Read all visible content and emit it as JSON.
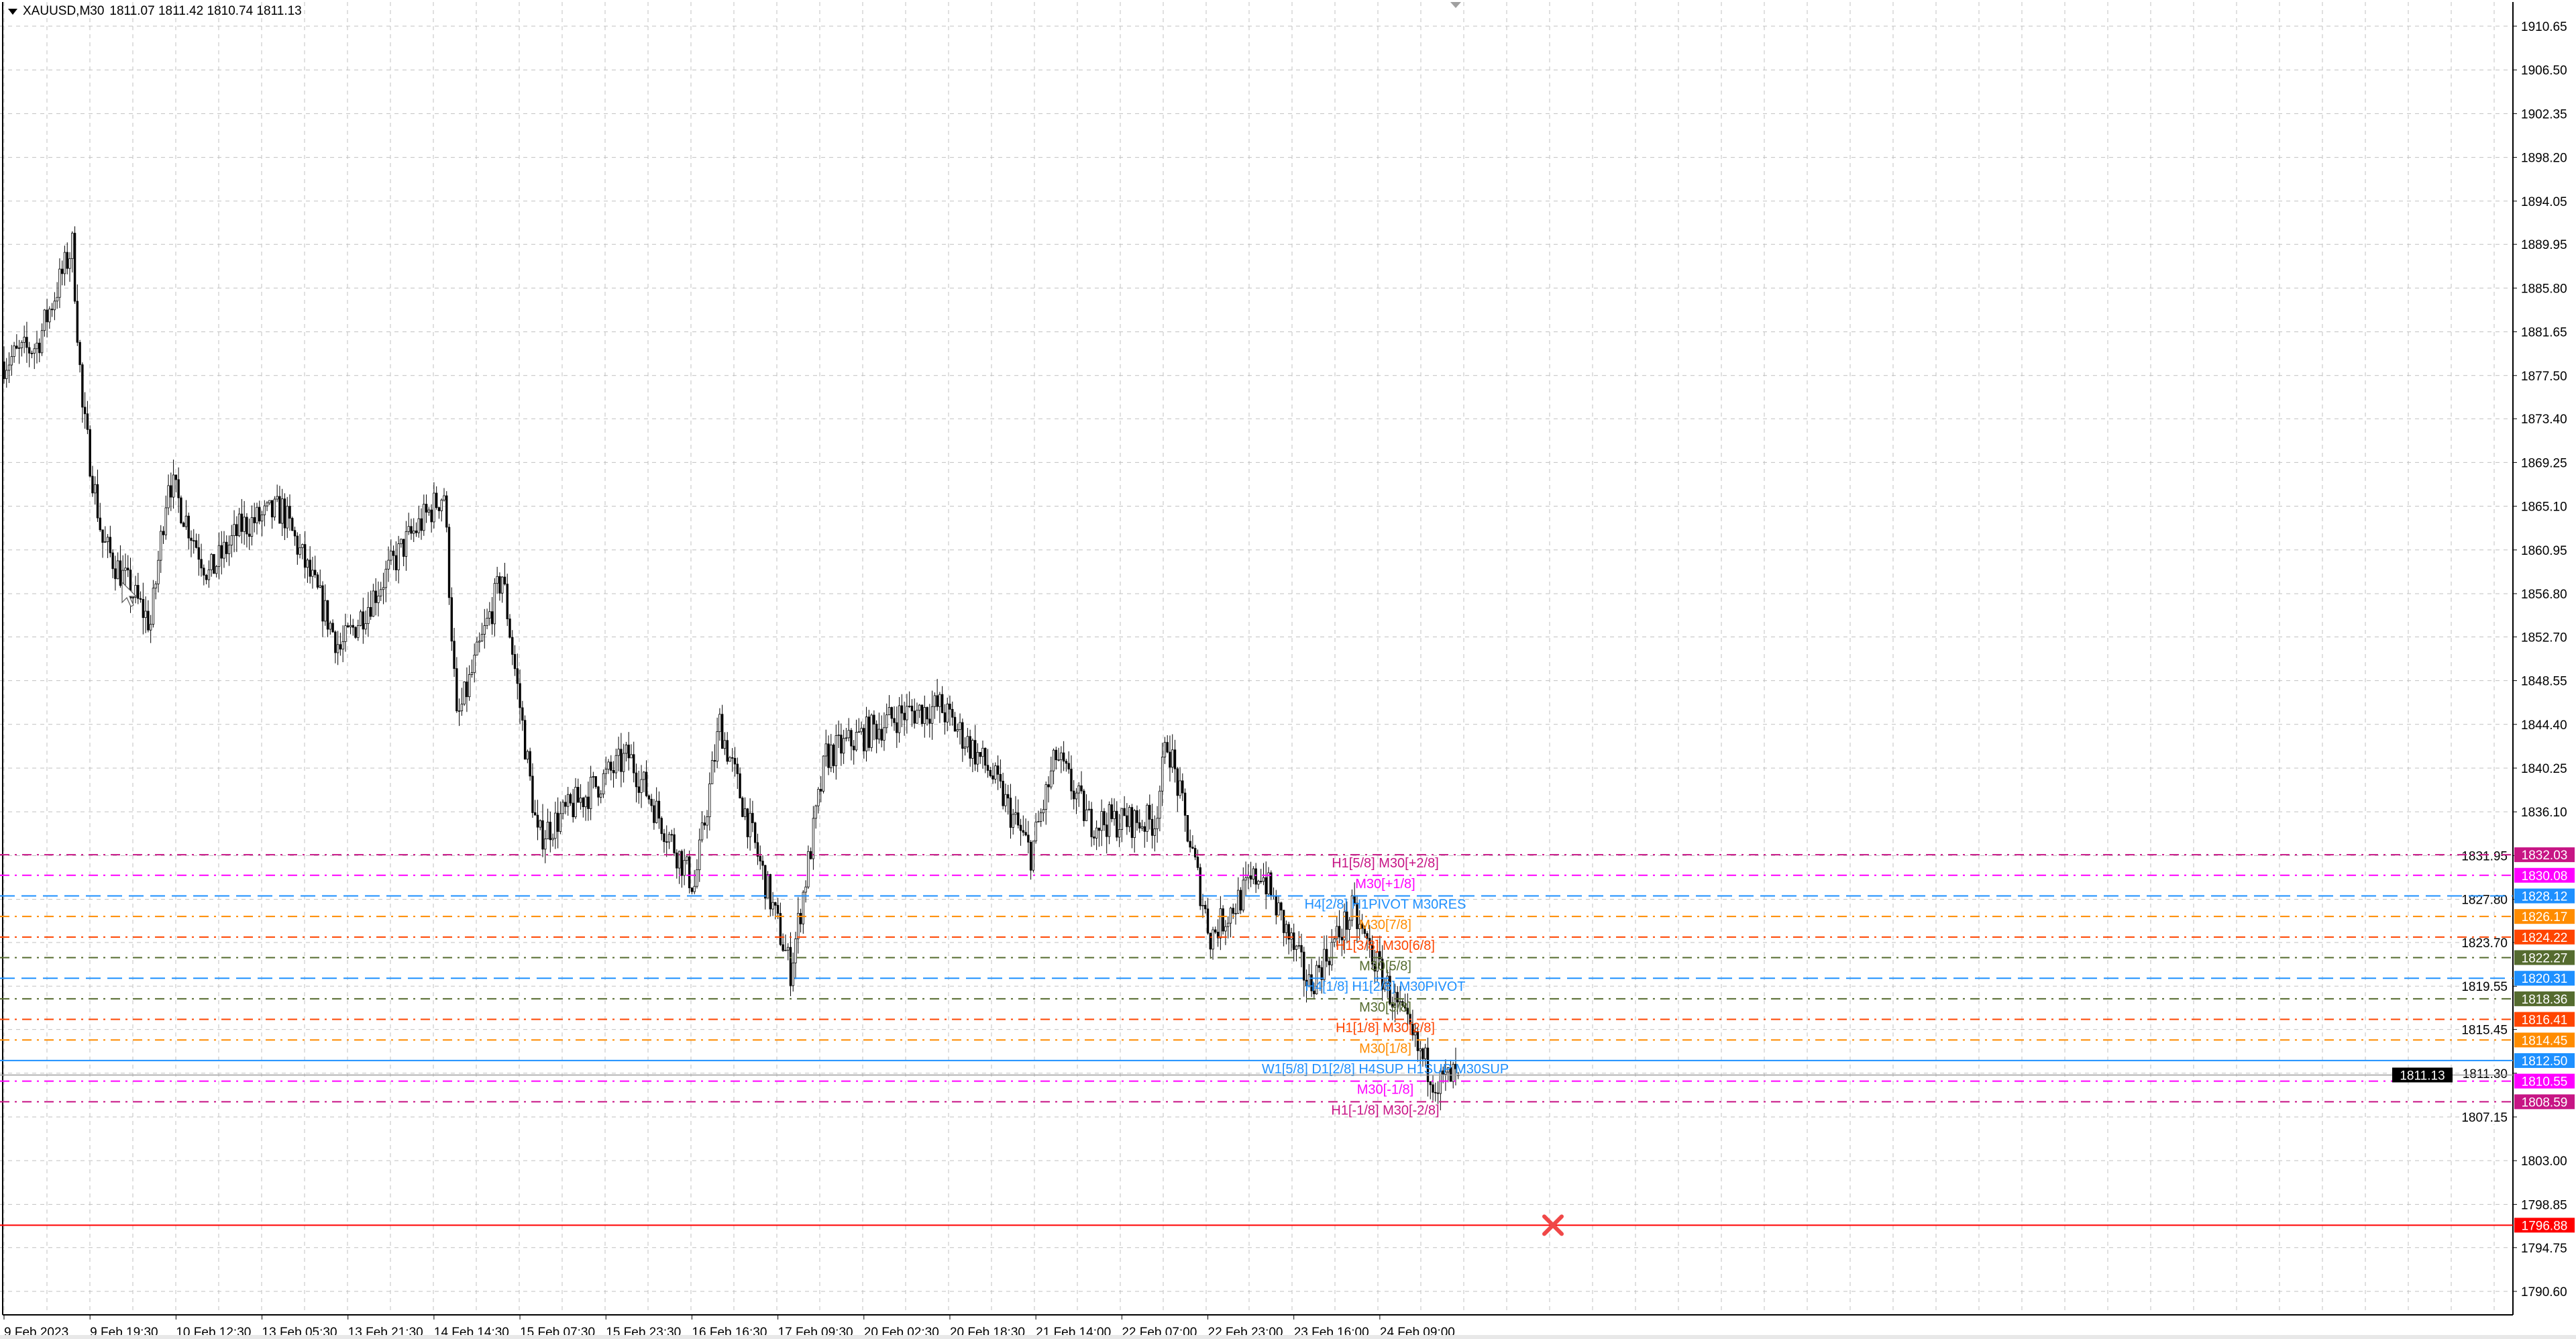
{
  "header": {
    "symbol": "XAUUSD,M30",
    "ohlc": "1811.07 1811.42 1810.74 1811.13"
  },
  "colors": {
    "bull_body": "#ffffff",
    "bear_body": "#000000",
    "grid": "#c0c0c0",
    "axis": "#000000",
    "alert_line": "#ff0000"
  },
  "chart_data": {
    "type": "candlestick",
    "symbol": "XAUUSD",
    "timeframe": "M30",
    "ylim": [
      1788.5,
      1913.0
    ],
    "price_ticks": [
      "1910.65",
      "1906.50",
      "1902.35",
      "1898.20",
      "1894.05",
      "1889.95",
      "1885.80",
      "1881.65",
      "1877.50",
      "1873.40",
      "1869.25",
      "1865.10",
      "1860.95",
      "1856.80",
      "1852.70",
      "1848.55",
      "1844.40",
      "1840.25",
      "1836.10",
      "1831.95",
      "1827.80",
      "1823.70",
      "1819.55",
      "1815.45",
      "1811.30",
      "1807.15",
      "1803.00",
      "1798.85",
      "1794.75",
      "1790.60"
    ],
    "time_labels": [
      "9 Feb 2023",
      "9 Feb 19:30",
      "10 Feb 12:30",
      "13 Feb 05:30",
      "13 Feb 21:30",
      "14 Feb 14:30",
      "15 Feb 07:30",
      "15 Feb 23:30",
      "16 Feb 16:30",
      "17 Feb 09:30",
      "20 Feb 02:30",
      "20 Feb 18:30",
      "21 Feb 14:00",
      "22 Feb 07:00",
      "22 Feb 23:00",
      "23 Feb 16:00",
      "24 Feb 09:00"
    ],
    "bars_per_time_label": 34,
    "close_path": [
      [
        0,
        1878.8
      ],
      [
        13,
        1880.4
      ],
      [
        27,
        1889.8
      ],
      [
        31,
        1874.2
      ],
      [
        39,
        1861.7
      ],
      [
        58,
        1853.9
      ],
      [
        65,
        1867.9
      ],
      [
        81,
        1858.6
      ],
      [
        94,
        1863.2
      ],
      [
        110,
        1864.8
      ],
      [
        133,
        1851.5
      ],
      [
        159,
        1861.7
      ],
      [
        174,
        1866.4
      ],
      [
        179,
        1844.5
      ],
      [
        197,
        1858.6
      ],
      [
        211,
        1833.6
      ],
      [
        247,
        1841.4
      ],
      [
        273,
        1829.0
      ],
      [
        283,
        1844.5
      ],
      [
        311,
        1821.1
      ],
      [
        325,
        1841.4
      ],
      [
        354,
        1845.3
      ],
      [
        370,
        1846.1
      ],
      [
        390,
        1839.9
      ],
      [
        406,
        1832.1
      ],
      [
        416,
        1841.4
      ],
      [
        429,
        1835.2
      ],
      [
        455,
        1835.2
      ],
      [
        460,
        1843.0
      ],
      [
        477,
        1824.3
      ],
      [
        497,
        1830.5
      ],
      [
        516,
        1819.6
      ],
      [
        533,
        1826.6
      ],
      [
        559,
        1813.4
      ],
      [
        567,
        1810.3
      ],
      [
        575,
        1811.13
      ]
    ],
    "last": {
      "open": 1811.07,
      "high": 1811.42,
      "low": 1810.74,
      "close": 1811.13
    },
    "current_price_label": "1811.13",
    "levels": [
      {
        "price": "1832.03",
        "label": "H1[5/8] M30[+2/8]",
        "color": "#c71585",
        "solid": false
      },
      {
        "price": "1830.08",
        "label": "M30[+1/8]",
        "color": "#ff00ff",
        "solid": false
      },
      {
        "price": "1828.12",
        "label": "H4[2/8] H1PIVOT M30RES",
        "color": "#1e90ff",
        "solid": false
      },
      {
        "price": "1826.17",
        "label": "M30[7/8]",
        "color": "#ff8c00",
        "solid": false
      },
      {
        "price": "1824.22",
        "label": "H1[3/8] M30[6/8]",
        "color": "#ff4500",
        "solid": false
      },
      {
        "price": "1822.27",
        "label": "M30[5/8]",
        "color": "#556b2f",
        "solid": false
      },
      {
        "price": "1820.31",
        "label": "H4[1/8] H1[2/8] M30PIVOT",
        "color": "#1e90ff",
        "solid": false
      },
      {
        "price": "1818.36",
        "label": "M30[3/8]",
        "color": "#556b2f",
        "solid": false
      },
      {
        "price": "1816.41",
        "label": "H1[1/8] M30[2/8]",
        "color": "#ff4500",
        "solid": false
      },
      {
        "price": "1814.45",
        "label": "M30[1/8]",
        "color": "#ff8c00",
        "solid": false
      },
      {
        "price": "1812.50",
        "label": "W1[5/8] D1[2/8] H4SUP H1SUP M30SUP",
        "color": "#1e90ff",
        "solid": true
      },
      {
        "price": "1810.55",
        "label": "M30[-1/8]",
        "color": "#ff00ff",
        "solid": false
      },
      {
        "price": "1808.59",
        "label": "H1[-1/8] M30[-2/8]",
        "color": "#c71585",
        "solid": false
      }
    ],
    "alert_line": {
      "price": "1796.88",
      "icon": "close-x-icon"
    }
  }
}
